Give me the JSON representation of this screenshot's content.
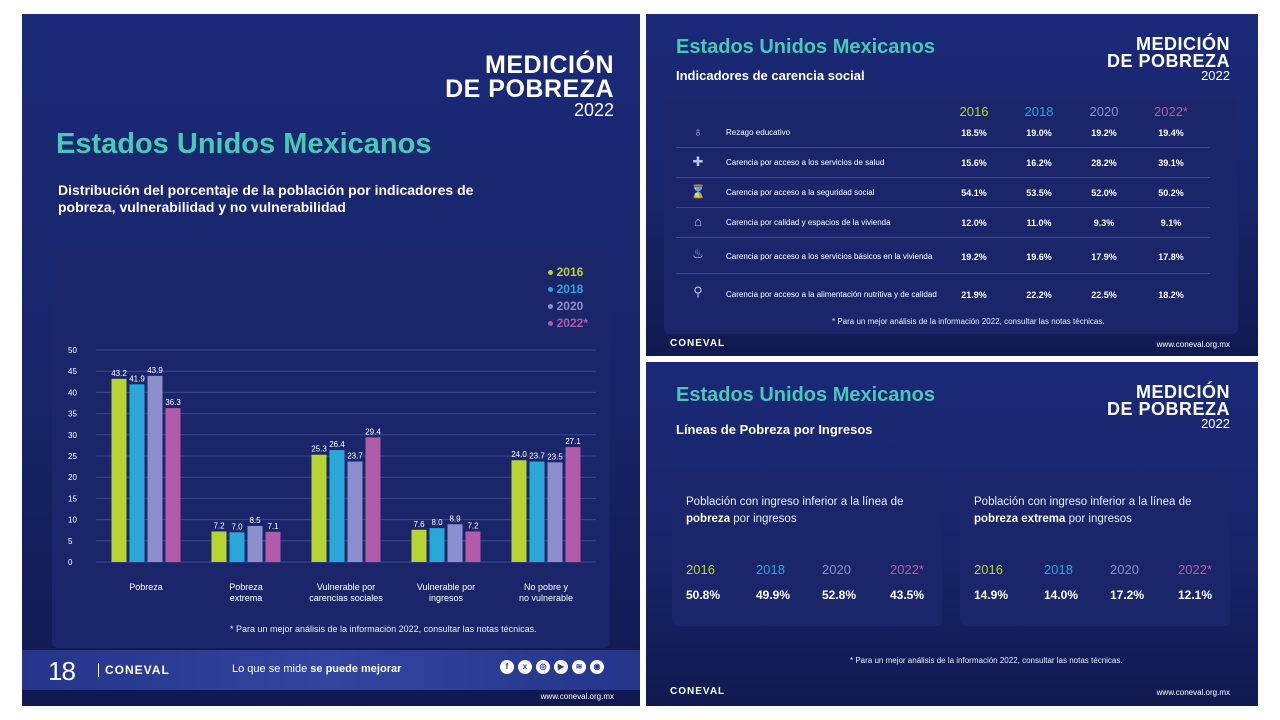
{
  "colors": {
    "y2016": "#b8d432",
    "y2018": "#2aa7d9",
    "y2020": "#8c8fce",
    "y2022": "#b25ba8",
    "teal_title": "#48c9b4",
    "panel_bg": "#1b2a78"
  },
  "logo": {
    "line1": "MEDICIÓN",
    "line2": "DE POBREZA",
    "line3": "2022"
  },
  "left": {
    "title": "Estados Unidos Mexicanos",
    "subtitle": "Distribución del porcentaje de la población por indicadores de pobreza, vulnerabilidad y no vulnerabilidad",
    "legend": [
      "2016",
      "2018",
      "2020",
      "2022*"
    ],
    "footnote": "* Para un mejor análisis de la información 2022, consultar las notas técnicas.",
    "anniversary": "18",
    "brand": "CONEVAL",
    "slogan_pre": "Lo que se mide ",
    "slogan_bold": "se puede mejorar",
    "social_icons": [
      "facebook-icon",
      "twitter-icon",
      "instagram-icon",
      "youtube-icon",
      "spotify-icon",
      "podcast-icon"
    ],
    "url": "www.coneval.org.mx"
  },
  "chart_data": {
    "type": "bar",
    "categories": [
      "Pobreza",
      "Pobreza extrema",
      "Vulnerable por carencias sociales",
      "Vulnerable por ingresos",
      "No pobre y no vulnerable"
    ],
    "series": [
      {
        "name": "2016",
        "values": [
          43.2,
          7.2,
          25.3,
          7.6,
          24.0
        ]
      },
      {
        "name": "2018",
        "values": [
          41.9,
          7.0,
          26.4,
          8.0,
          23.7
        ]
      },
      {
        "name": "2020",
        "values": [
          43.9,
          8.5,
          23.7,
          8.9,
          23.5
        ]
      },
      {
        "name": "2022*",
        "values": [
          36.3,
          7.1,
          29.4,
          7.2,
          27.1
        ]
      }
    ],
    "ylim": [
      0,
      50
    ],
    "yticks": [
      0,
      5,
      10,
      15,
      20,
      25,
      30,
      35,
      40,
      45,
      50
    ],
    "grid": true,
    "legend_position": "top-right"
  },
  "top_right": {
    "title": "Estados Unidos Mexicanos",
    "subtitle": "Indicadores de carencia social",
    "years": [
      "2016",
      "2018",
      "2020",
      "2022*"
    ],
    "rows": [
      {
        "icon": "graduation-icon",
        "label": "Rezago educativo",
        "values": [
          "18.5%",
          "19.0%",
          "19.2%",
          "19.4%"
        ]
      },
      {
        "icon": "health-icon",
        "label": "Carencia por acceso a los servicios de salud",
        "values": [
          "15.6%",
          "16.2%",
          "28.2%",
          "39.1%"
        ]
      },
      {
        "icon": "social-security-icon",
        "label": "Carencia por acceso a la seguridad social",
        "values": [
          "54.1%",
          "53.5%",
          "52.0%",
          "50.2%"
        ]
      },
      {
        "icon": "housing-icon",
        "label": "Carencia por calidad y espacios de la vivienda",
        "values": [
          "12.0%",
          "11.0%",
          "9.3%",
          "9.1%"
        ]
      },
      {
        "icon": "basic-services-icon",
        "label": "Carencia por acceso a los servicios básicos en la vivienda",
        "values": [
          "19.2%",
          "19.6%",
          "17.9%",
          "17.8%"
        ]
      },
      {
        "icon": "food-icon",
        "label": "Carencia por acceso a la alimentación nutritiva y de calidad",
        "values": [
          "21.9%",
          "22.2%",
          "22.5%",
          "18.2%"
        ]
      }
    ],
    "footnote": "* Para un mejor análisis de la información 2022, consultar las notas técnicas.",
    "brand": "CONEVAL",
    "url": "www.coneval.org.mx"
  },
  "bottom_right": {
    "title": "Estados Unidos Mexicanos",
    "subtitle": "Líneas de Pobreza por Ingresos",
    "cards": [
      {
        "desc_pre": "Población con ingreso inferior a la línea de ",
        "desc_bold": "pobreza",
        "desc_post": " por ingresos",
        "years": [
          "2016",
          "2018",
          "2020",
          "2022*"
        ],
        "values": [
          "50.8%",
          "49.9%",
          "52.8%",
          "43.5%"
        ]
      },
      {
        "desc_pre": "Población con ingreso inferior a la línea de ",
        "desc_bold": "pobreza extrema",
        "desc_post": " por ingresos",
        "years": [
          "2016",
          "2018",
          "2020",
          "2022*"
        ],
        "values": [
          "14.9%",
          "14.0%",
          "17.2%",
          "12.1%"
        ]
      }
    ],
    "footnote": "* Para un mejor análisis de la información 2022, consultar las notas técnicas.",
    "brand": "CONEVAL",
    "url": "www.coneval.org.mx"
  }
}
